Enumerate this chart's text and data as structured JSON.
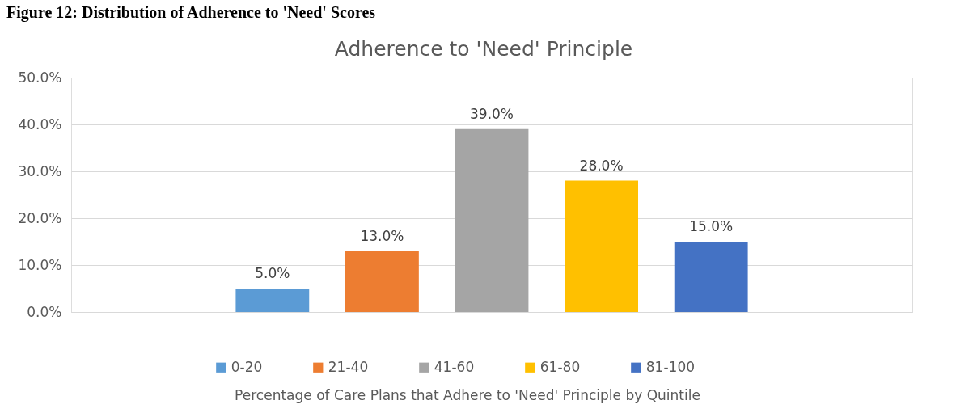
{
  "chart_data": {
    "type": "bar",
    "title": "Adherence to 'Need' Principle",
    "xlabel": "Percentage of Care Plans that Adhere to 'Need' Principle by Quintile",
    "annotations": [
      "Figure 12: Distribution of Adherence to 'Need' Scores"
    ],
    "categories": [
      null
    ],
    "series": [
      {
        "name": "0-20",
        "color": "#5b9bd5",
        "values": [
          5
        ],
        "value_labels": [
          "5.0%"
        ]
      },
      {
        "name": "21-40",
        "color": "#ed7d31",
        "values": [
          13
        ],
        "value_labels": [
          "13.0%"
        ]
      },
      {
        "name": "41-60",
        "color": "#a5a5a5",
        "values": [
          39
        ],
        "value_labels": [
          "39.0%"
        ]
      },
      {
        "name": "61-80",
        "color": "#ffc000",
        "values": [
          28
        ],
        "value_labels": [
          "28.0%"
        ]
      },
      {
        "name": "81-100",
        "color": "#4472c4",
        "values": [
          15
        ],
        "value_labels": [
          "15.0%"
        ]
      }
    ],
    "ylim": [
      0,
      50
    ],
    "yticks": [
      {
        "value": 0,
        "label": "0.0%"
      },
      {
        "value": 10,
        "label": "10.0%"
      },
      {
        "value": 20,
        "label": "20.0%"
      },
      {
        "value": 30,
        "label": "30.0%"
      },
      {
        "value": 40,
        "label": "40.0%"
      },
      {
        "value": 50,
        "label": "50.0%"
      }
    ],
    "grid": "y",
    "legend": "bottom",
    "tick_labels": "y"
  }
}
